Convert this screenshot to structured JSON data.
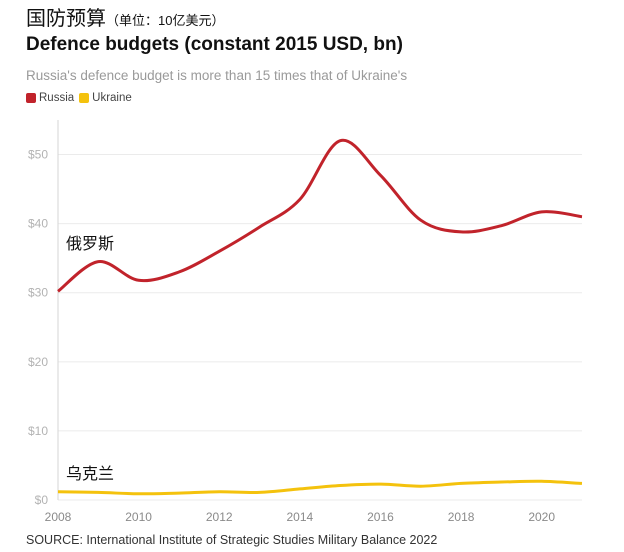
{
  "chart_data": {
    "type": "line",
    "title_cn": "国防预算",
    "unit_cn": "（单位：10亿美元）",
    "title": "Defence budgets (constant 2015 USD, bn)",
    "subtitle": "Russia's defence budget is more than 15 times that of Ukraine's",
    "x": [
      2008,
      2009,
      2010,
      2011,
      2012,
      2013,
      2014,
      2015,
      2016,
      2017,
      2018,
      2019,
      2020,
      2021
    ],
    "series": [
      {
        "name": "Russia",
        "color": "#c1232b",
        "values": [
          30.2,
          34.5,
          31.8,
          33.0,
          36.0,
          39.5,
          43.5,
          52.0,
          47.0,
          40.5,
          38.8,
          39.7,
          41.7,
          41.0
        ]
      },
      {
        "name": "Ukraine",
        "color": "#f4c20d",
        "values": [
          1.2,
          1.1,
          0.9,
          1.0,
          1.2,
          1.1,
          1.6,
          2.1,
          2.3,
          2.0,
          2.4,
          2.6,
          2.7,
          2.4
        ]
      }
    ],
    "x_ticks": [
      2008,
      2010,
      2012,
      2014,
      2016,
      2018,
      2020
    ],
    "y_ticks": [
      0,
      10,
      20,
      30,
      40,
      50
    ],
    "y_tick_labels": [
      "$0",
      "$10",
      "$20",
      "$30",
      "$40",
      "$50"
    ],
    "xlim": [
      2008,
      2021
    ],
    "ylim": [
      0,
      55
    ],
    "grid": "horizontal",
    "legend_position": "top-left",
    "annotations": [
      "俄罗斯",
      "乌克兰"
    ]
  },
  "source": "SOURCE: International Institute of Strategic Studies Military Balance 2022"
}
